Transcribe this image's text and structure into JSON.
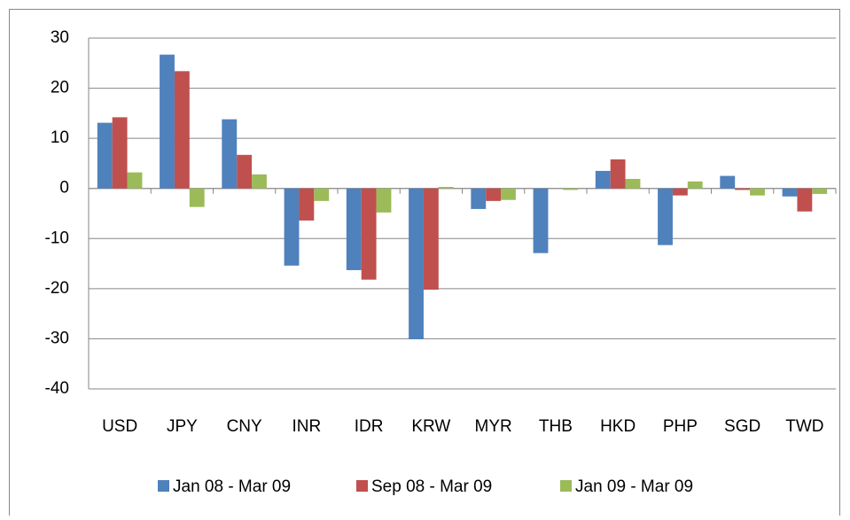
{
  "chart_data": {
    "type": "bar",
    "categories": [
      "USD",
      "JPY",
      "CNY",
      "INR",
      "IDR",
      "KRW",
      "MYR",
      "THB",
      "HKD",
      "PHP",
      "SGD",
      "TWD"
    ],
    "series": [
      {
        "name": "Jan 08 - Mar 09",
        "color": "#4f81bd",
        "values": [
          13.1,
          26.7,
          13.8,
          -15.4,
          -16.3,
          -30.1,
          -4.1,
          -12.9,
          3.5,
          -11.3,
          2.5,
          -1.6
        ]
      },
      {
        "name": "Sep 08 - Mar 09",
        "color": "#c0504d",
        "values": [
          14.2,
          23.4,
          6.7,
          -6.4,
          -18.2,
          -20.2,
          -2.5,
          0,
          5.8,
          -1.4,
          -0.3,
          -4.6
        ]
      },
      {
        "name": "Jan 09 - Mar 09",
        "color": "#9bbb59",
        "values": [
          3.2,
          -3.7,
          2.8,
          -2.5,
          -4.8,
          0.3,
          -2.3,
          -0.3,
          1.9,
          1.4,
          -1.4,
          -1.1
        ]
      }
    ],
    "ylim": [
      -40,
      30
    ],
    "yticks": [
      -40,
      -30,
      -20,
      -10,
      0,
      10,
      20,
      30
    ],
    "grid": true,
    "legend": "bottom"
  }
}
